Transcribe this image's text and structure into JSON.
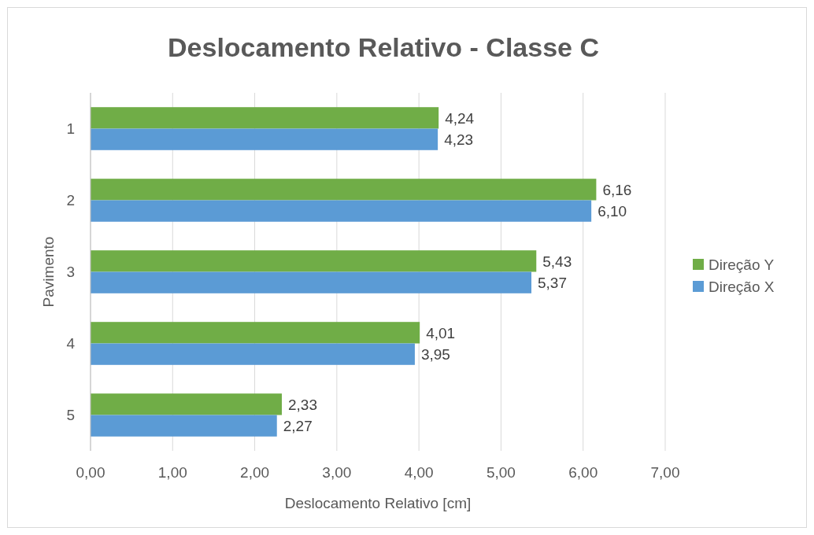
{
  "chart_data": {
    "type": "bar",
    "orientation": "horizontal",
    "title": "Deslocamento Relativo - Classe C",
    "xlabel": "Deslocamento Relativo [cm]",
    "ylabel": "Pavimento",
    "categories": [
      "1",
      "2",
      "3",
      "4",
      "5"
    ],
    "series": [
      {
        "name": "Direção Y",
        "color": "#70ad47",
        "values": [
          4.24,
          6.16,
          5.43,
          4.01,
          2.33
        ],
        "value_labels": [
          "4,24",
          "6,16",
          "5,43",
          "4,01",
          "2,33"
        ]
      },
      {
        "name": "Direção X",
        "color": "#5b9bd5",
        "values": [
          4.23,
          6.1,
          5.37,
          3.95,
          2.27
        ],
        "value_labels": [
          "4,23",
          "6,10",
          "5,37",
          "3,95",
          "2,27"
        ]
      }
    ],
    "xlim": [
      0,
      7
    ],
    "xticks": [
      {
        "value": 0,
        "label": "0,00"
      },
      {
        "value": 1,
        "label": "1,00"
      },
      {
        "value": 2,
        "label": "2,00"
      },
      {
        "value": 3,
        "label": "3,00"
      },
      {
        "value": 4,
        "label": "4,00"
      },
      {
        "value": 5,
        "label": "5,00"
      },
      {
        "value": 6,
        "label": "6,00"
      },
      {
        "value": 7,
        "label": "7,00"
      }
    ],
    "grid": "x",
    "legend": "right"
  }
}
